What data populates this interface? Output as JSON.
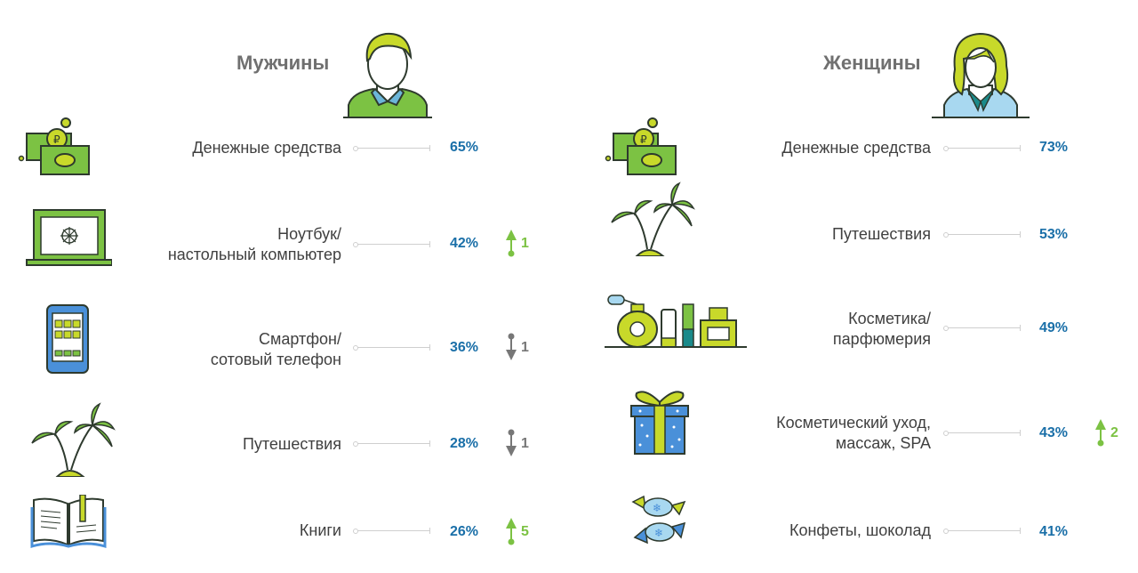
{
  "colors": {
    "percent": "#1a6fa8",
    "up": "#7cc243",
    "down": "#777777",
    "label": "#404040",
    "title": "#707070"
  },
  "sections": [
    {
      "title": "Мужчины",
      "avatar": "man-avatar-icon",
      "rows": [
        {
          "label": "Денежные средства",
          "value_text": "65%",
          "icon": "money-icon",
          "change": null
        },
        {
          "label": "Ноутбук/\nнастольный компьютер",
          "value_text": "42%",
          "icon": "laptop-icon",
          "change": {
            "direction": "up",
            "text": "1"
          }
        },
        {
          "label": "Смартфон/\nсотовый телефон",
          "value_text": "36%",
          "icon": "smartphone-icon",
          "change": {
            "direction": "down",
            "text": "1"
          }
        },
        {
          "label": "Путешествия",
          "value_text": "28%",
          "icon": "palm-icon",
          "change": {
            "direction": "down",
            "text": "1"
          }
        },
        {
          "label": "Книги",
          "value_text": "26%",
          "icon": "book-icon",
          "change": {
            "direction": "up",
            "text": "5"
          }
        }
      ]
    },
    {
      "title": "Женщины",
      "avatar": "woman-avatar-icon",
      "rows": [
        {
          "label": "Денежные средства",
          "value_text": "73%",
          "icon": "money-icon",
          "change": null
        },
        {
          "label": "Путешествия",
          "value_text": "53%",
          "icon": "palm-icon",
          "change": null
        },
        {
          "label": "Косметика/\nпарфюмерия",
          "value_text": "49%",
          "icon": "cosmetics-icon",
          "change": null
        },
        {
          "label": "Косметический уход,\nмассаж, SPA",
          "value_text": "43%",
          "icon": "gift-icon",
          "change": {
            "direction": "up",
            "text": "2"
          }
        },
        {
          "label": "Конфеты, шоколад",
          "value_text": "41%",
          "icon": "candy-icon",
          "change": null
        }
      ]
    }
  ],
  "chart_data": [
    {
      "type": "table",
      "title": "Мужчины",
      "categories": [
        "Денежные средства",
        "Ноутбук/настольный компьютер",
        "Смартфон/сотовый телефон",
        "Путешествия",
        "Книги"
      ],
      "values": [
        65,
        42,
        36,
        28,
        26
      ],
      "changes": [
        null,
        1,
        -1,
        -1,
        5
      ]
    },
    {
      "type": "table",
      "title": "Женщины",
      "categories": [
        "Денежные средства",
        "Путешествия",
        "Косметика/парфюмерия",
        "Косметический уход, массаж, SPA",
        "Конфеты, шоколад"
      ],
      "values": [
        73,
        53,
        49,
        43,
        41
      ],
      "changes": [
        null,
        null,
        null,
        2,
        null
      ]
    }
  ]
}
